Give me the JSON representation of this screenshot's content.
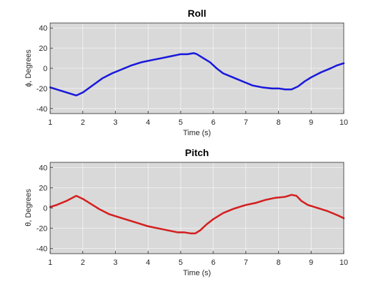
{
  "chart_data": [
    {
      "type": "line",
      "title": "Roll",
      "xlabel": "Time (s)",
      "ylabel": "ϕ, Degrees",
      "xlim": [
        1,
        10
      ],
      "ylim": [
        -45,
        45
      ],
      "xticks": [
        1,
        2,
        3,
        4,
        5,
        6,
        7,
        8,
        9,
        10
      ],
      "yticks": [
        -40,
        -20,
        0,
        20,
        40
      ],
      "grid": true,
      "color": "#1a1adc",
      "background": "#d9d9d9",
      "series": [
        {
          "x": [
            1.0,
            1.3,
            1.6,
            1.8,
            2.0,
            2.3,
            2.6,
            2.9,
            3.2,
            3.5,
            3.8,
            4.1,
            4.4,
            4.7,
            5.0,
            5.2,
            5.4,
            5.5,
            5.7,
            5.9,
            6.1,
            6.3,
            6.6,
            6.9,
            7.2,
            7.5,
            7.8,
            8.0,
            8.2,
            8.4,
            8.6,
            8.8,
            9.0,
            9.3,
            9.6,
            9.8,
            10.0
          ],
          "y": [
            -19,
            -22,
            -25,
            -27,
            -24,
            -17,
            -10,
            -5,
            -1,
            3,
            6,
            8,
            10,
            12,
            14,
            14,
            15,
            14,
            10,
            6,
            0,
            -5,
            -9,
            -13,
            -17,
            -19,
            -20,
            -20,
            -21,
            -21,
            -18,
            -13,
            -9,
            -4,
            0,
            3,
            5
          ]
        }
      ]
    },
    {
      "type": "line",
      "title": "Pitch",
      "xlabel": "Time (s)",
      "ylabel": "θ, Degrees",
      "xlim": [
        1,
        10
      ],
      "ylim": [
        -45,
        45
      ],
      "xticks": [
        1,
        2,
        3,
        4,
        5,
        6,
        7,
        8,
        9,
        10
      ],
      "yticks": [
        -40,
        -20,
        0,
        20,
        40
      ],
      "grid": true,
      "color": "#d42020",
      "background": "#d9d9d9",
      "series": [
        {
          "x": [
            1.0,
            1.2,
            1.5,
            1.8,
            2.0,
            2.2,
            2.5,
            2.8,
            3.2,
            3.6,
            4.0,
            4.3,
            4.6,
            4.9,
            5.1,
            5.3,
            5.45,
            5.6,
            5.8,
            6.0,
            6.3,
            6.6,
            6.8,
            7.0,
            7.3,
            7.6,
            7.9,
            8.2,
            8.4,
            8.55,
            8.7,
            8.9,
            9.2,
            9.5,
            9.8,
            10.0
          ],
          "y": [
            1,
            3,
            7,
            12,
            9,
            5,
            -1,
            -6,
            -10,
            -14,
            -18,
            -20,
            -22,
            -24,
            -24,
            -25,
            -25,
            -22,
            -16,
            -11,
            -5,
            -1,
            1,
            3,
            5,
            8,
            10,
            11,
            13,
            12,
            7,
            3,
            0,
            -3,
            -7,
            -10
          ]
        }
      ]
    }
  ]
}
